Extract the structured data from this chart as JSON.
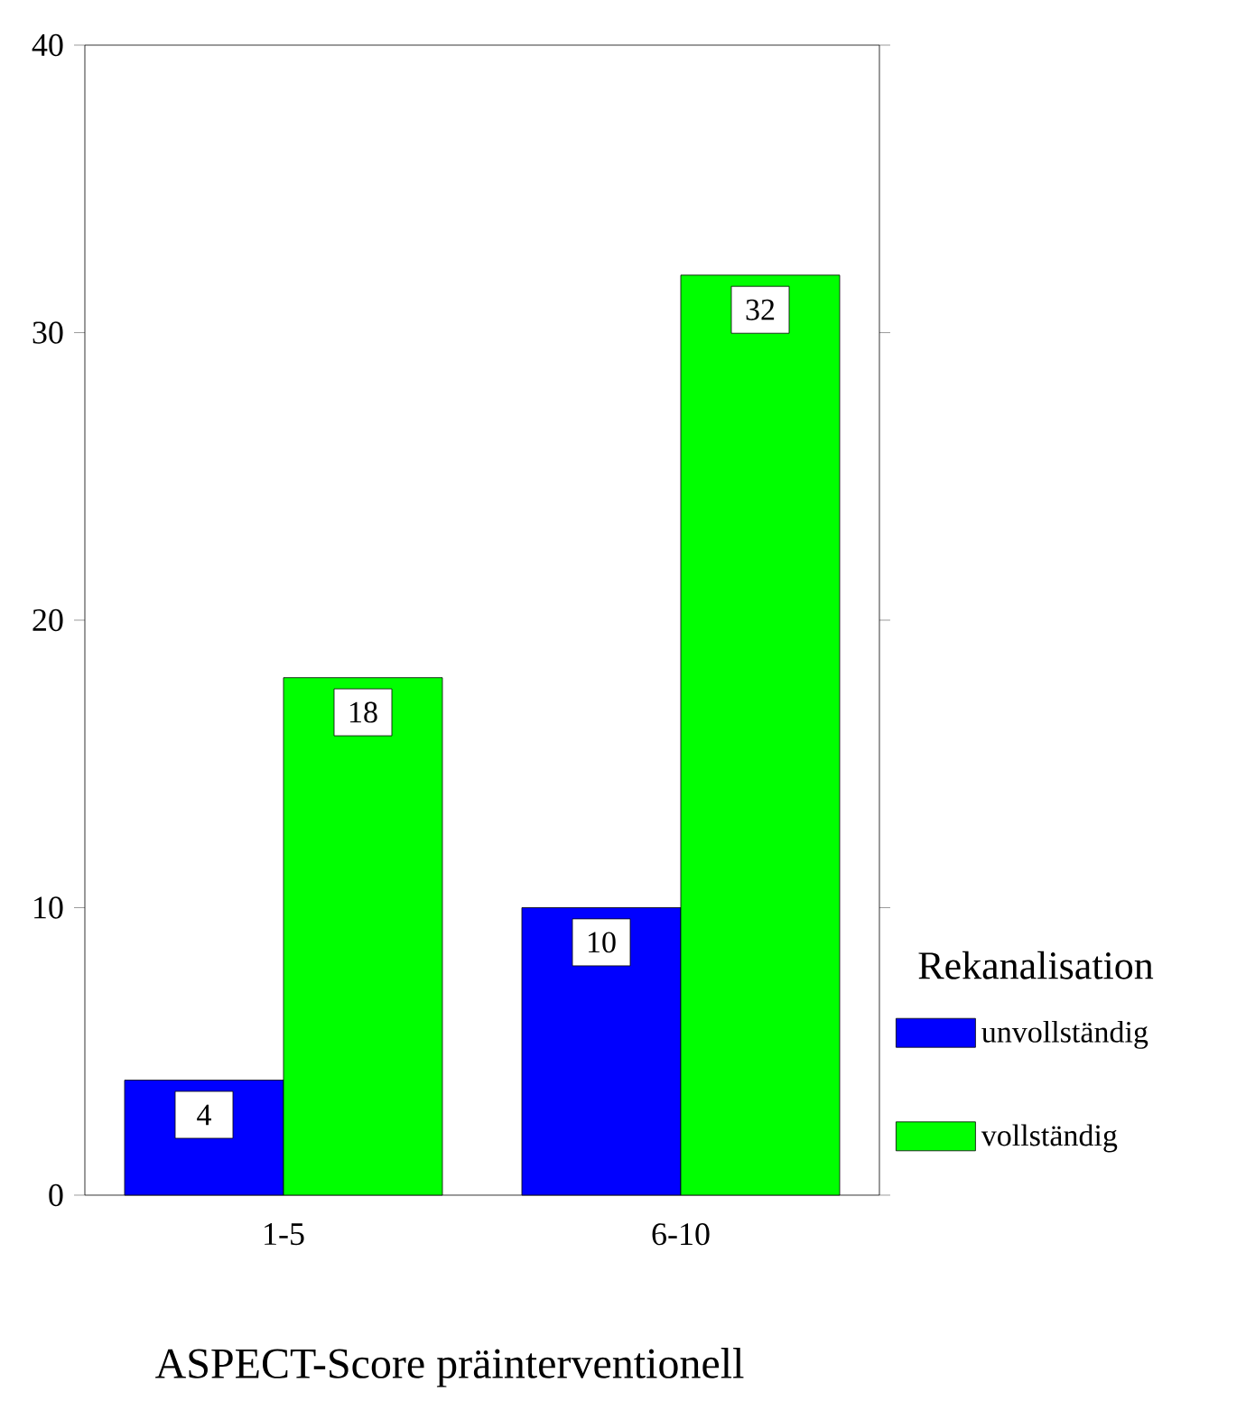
{
  "chart_data": {
    "type": "bar",
    "xlabel": "ASPECT-Score präinterventionell",
    "legend_title": "Rekanalisation",
    "categories": [
      "1-5",
      "6-10"
    ],
    "series": [
      {
        "name": "unvollständig",
        "color": "#0000ff",
        "values": [
          4,
          10
        ]
      },
      {
        "name": "vollständig",
        "color": "#00ff00",
        "values": [
          18,
          32
        ]
      }
    ],
    "ylim": [
      0,
      40
    ],
    "yticks": [
      0,
      10,
      20,
      30,
      40
    ],
    "data_labels": true,
    "grid": false,
    "legend": "right"
  }
}
